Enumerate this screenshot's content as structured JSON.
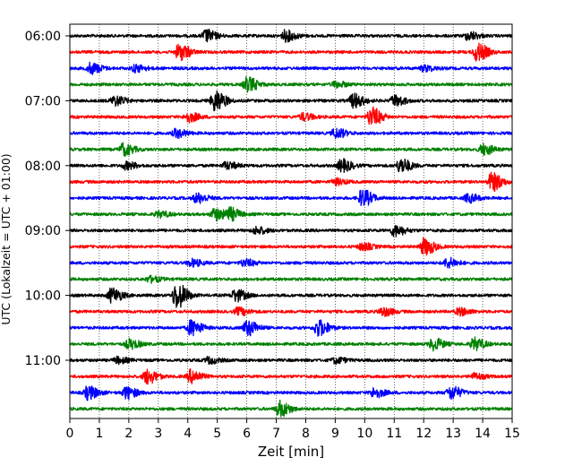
{
  "chart_data": {
    "type": "line",
    "chart_kind": "helicorder",
    "xlabel": "Zeit  [min]",
    "ylabel": "UTC (Lokalzeit = UTC + 01:00)",
    "xlim": [
      0,
      15
    ],
    "x_ticks": [
      0,
      1,
      2,
      3,
      4,
      5,
      6,
      7,
      8,
      9,
      10,
      11,
      12,
      13,
      14,
      15
    ],
    "y_tick_labels": [
      "06:00",
      "07:00",
      "08:00",
      "09:00",
      "10:00",
      "11:00"
    ],
    "grid": "vertical dotted lines at each minute",
    "trace_colors": [
      "#000000",
      "#ff0000",
      "#0000ff",
      "#008000"
    ],
    "traces": [
      {
        "start": "06:00",
        "color": "#000000",
        "events": [
          [
            4.6,
            1.0
          ],
          [
            7.3,
            0.9
          ],
          [
            13.5,
            0.7
          ]
        ]
      },
      {
        "start": "06:15",
        "color": "#ff0000",
        "events": [
          [
            3.7,
            1.4
          ],
          [
            13.8,
            1.5
          ]
        ]
      },
      {
        "start": "06:30",
        "color": "#0000ff",
        "events": [
          [
            0.7,
            0.9
          ],
          [
            2.2,
            0.6
          ],
          [
            12.0,
            0.5
          ]
        ]
      },
      {
        "start": "06:45",
        "color": "#008000",
        "events": [
          [
            6.0,
            1.2
          ],
          [
            9.0,
            0.5
          ]
        ]
      },
      {
        "start": "07:00",
        "color": "#000000",
        "events": [
          [
            1.5,
            0.8
          ],
          [
            4.9,
            1.8
          ],
          [
            9.6,
            1.2
          ],
          [
            11.0,
            0.9
          ]
        ]
      },
      {
        "start": "07:15",
        "color": "#ff0000",
        "events": [
          [
            4.0,
            0.8
          ],
          [
            7.9,
            0.6
          ],
          [
            10.2,
            1.6
          ]
        ]
      },
      {
        "start": "07:30",
        "color": "#0000ff",
        "events": [
          [
            3.6,
            0.7
          ],
          [
            9.0,
            0.8
          ]
        ]
      },
      {
        "start": "07:45",
        "color": "#008000",
        "events": [
          [
            1.8,
            1.0
          ],
          [
            14.0,
            0.9
          ]
        ]
      },
      {
        "start": "08:00",
        "color": "#000000",
        "events": [
          [
            1.9,
            0.6
          ],
          [
            5.3,
            0.6
          ],
          [
            9.2,
            1.0
          ],
          [
            11.2,
            1.2
          ]
        ]
      },
      {
        "start": "08:15",
        "color": "#ff0000",
        "events": [
          [
            9.0,
            0.5
          ],
          [
            14.3,
            1.5
          ]
        ]
      },
      {
        "start": "08:30",
        "color": "#0000ff",
        "events": [
          [
            4.3,
            0.8
          ],
          [
            9.9,
            1.4
          ],
          [
            13.5,
            0.7
          ]
        ]
      },
      {
        "start": "08:45",
        "color": "#008000",
        "events": [
          [
            3.0,
            0.5
          ],
          [
            4.9,
            1.0
          ],
          [
            5.4,
            1.0
          ]
        ]
      },
      {
        "start": "09:00",
        "color": "#000000",
        "events": [
          [
            6.3,
            0.6
          ],
          [
            11.0,
            0.9
          ]
        ]
      },
      {
        "start": "09:15",
        "color": "#ff0000",
        "events": [
          [
            9.9,
            0.6
          ],
          [
            12.0,
            1.4
          ]
        ]
      },
      {
        "start": "09:30",
        "color": "#0000ff",
        "events": [
          [
            4.1,
            0.6
          ],
          [
            5.9,
            0.6
          ],
          [
            12.8,
            0.8
          ]
        ]
      },
      {
        "start": "09:45",
        "color": "#008000",
        "events": [
          [
            2.7,
            0.5
          ]
        ]
      },
      {
        "start": "10:00",
        "color": "#000000",
        "events": [
          [
            1.4,
            1.2
          ],
          [
            3.6,
            2.2
          ],
          [
            5.6,
            1.0
          ]
        ]
      },
      {
        "start": "10:15",
        "color": "#ff0000",
        "events": [
          [
            5.7,
            0.6
          ],
          [
            10.6,
            0.7
          ],
          [
            13.2,
            0.6
          ]
        ]
      },
      {
        "start": "10:30",
        "color": "#0000ff",
        "events": [
          [
            4.1,
            1.3
          ],
          [
            6.0,
            1.3
          ],
          [
            8.4,
            1.4
          ]
        ]
      },
      {
        "start": "10:45",
        "color": "#008000",
        "events": [
          [
            2.0,
            0.8
          ],
          [
            12.3,
            1.0
          ],
          [
            13.7,
            1.0
          ]
        ]
      },
      {
        "start": "11:00",
        "color": "#000000",
        "events": [
          [
            1.6,
            0.5
          ],
          [
            4.7,
            0.5
          ],
          [
            9.0,
            0.5
          ]
        ]
      },
      {
        "start": "11:15",
        "color": "#ff0000",
        "events": [
          [
            2.6,
            1.2
          ],
          [
            4.1,
            1.1
          ],
          [
            13.7,
            0.5
          ]
        ]
      },
      {
        "start": "11:30",
        "color": "#0000ff",
        "events": [
          [
            0.6,
            1.1
          ],
          [
            1.9,
            1.0
          ],
          [
            10.3,
            0.8
          ],
          [
            12.9,
            1.1
          ]
        ]
      },
      {
        "start": "11:45",
        "color": "#008000",
        "events": [
          [
            7.1,
            1.3
          ]
        ]
      }
    ]
  }
}
